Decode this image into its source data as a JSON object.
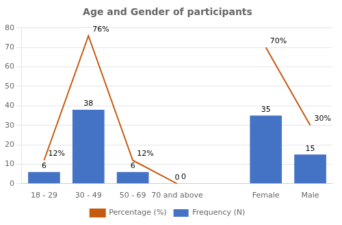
{
  "chart_data": {
    "type": "bar",
    "title": "Age and Gender of participants",
    "categories": [
      "18 - 29",
      "30 - 49",
      "50 - 69",
      "70 and above",
      null,
      "Female",
      "Male"
    ],
    "series": [
      {
        "name": "Frequency (N)",
        "type": "bar",
        "color": "#4472C4",
        "values": [
          6,
          38,
          6,
          0,
          null,
          35,
          15
        ],
        "data_labels": true
      },
      {
        "name": "Percentage (%)",
        "type": "line",
        "color": "#C55A11",
        "marker": "none",
        "values": [
          12,
          76,
          12,
          0,
          null,
          70,
          30
        ],
        "value_labels": [
          "12%",
          "76%",
          "12%",
          "0",
          null,
          "70%",
          "30%"
        ]
      }
    ],
    "ylim": [
      0,
      80
    ],
    "yticks": [
      0,
      10,
      20,
      30,
      40,
      50,
      60,
      70,
      80
    ],
    "grid": true,
    "legend": "bottom"
  }
}
